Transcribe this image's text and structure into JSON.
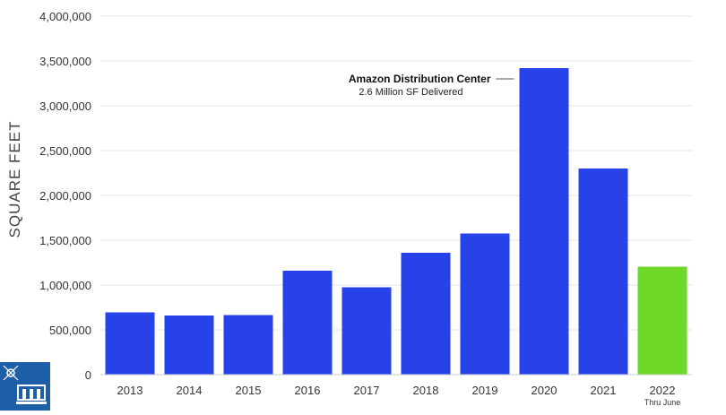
{
  "chart_data": {
    "type": "bar",
    "categories": [
      "2013",
      "2014",
      "2015",
      "2016",
      "2017",
      "2018",
      "2019",
      "2020",
      "2021",
      "2022"
    ],
    "category_sublabels": [
      "",
      "",
      "",
      "",
      "",
      "",
      "",
      "",
      "",
      "Thru June"
    ],
    "values": [
      695000,
      660000,
      665000,
      1160000,
      975000,
      1360000,
      1575000,
      3420000,
      2300000,
      1205000
    ],
    "bar_colors": [
      "#2742e8",
      "#2742e8",
      "#2742e8",
      "#2742e8",
      "#2742e8",
      "#2742e8",
      "#2742e8",
      "#2742e8",
      "#2742e8",
      "#6fd92a"
    ],
    "ylabel": "SQUARE FEET",
    "ylim": [
      0,
      4000000
    ],
    "yticks": [
      "0",
      "500,000",
      "1,000,000",
      "1,500,000",
      "2,000,000",
      "2,500,000",
      "3,000,000",
      "3,500,000",
      "4,000,000"
    ],
    "grid": true,
    "annotation": {
      "title": "Amazon Distribution Center",
      "subtitle": "2.6 Million SF Delivered",
      "category": "2020"
    }
  },
  "logo": {
    "icon": "building-network-icon"
  }
}
